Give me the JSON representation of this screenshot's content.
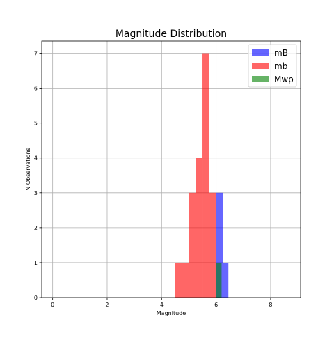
{
  "chart_data": {
    "type": "bar",
    "title": "Magnitude Distribution",
    "xlabel": "Magnitude",
    "ylabel": "N Observations",
    "xlim": [
      -0.4,
      9.1
    ],
    "ylim": [
      0,
      7.35
    ],
    "xticks": [
      0,
      2,
      4,
      6,
      8
    ],
    "yticks": [
      0,
      1,
      2,
      3,
      4,
      5,
      6,
      7
    ],
    "grid": true,
    "legend_position": "top-right",
    "series": [
      {
        "name": "mB",
        "color": "#0000ff",
        "opacity": 0.6,
        "bins": [
          {
            "x0": 6.0,
            "x1": 6.25,
            "count": 3
          },
          {
            "x0": 6.25,
            "x1": 6.45,
            "count": 1
          }
        ]
      },
      {
        "name": "mb",
        "color": "#ff0000",
        "opacity": 0.6,
        "bins": [
          {
            "x0": 4.5,
            "x1": 5.0,
            "count": 1
          },
          {
            "x0": 5.0,
            "x1": 5.25,
            "count": 3
          },
          {
            "x0": 5.25,
            "x1": 5.5,
            "count": 4
          },
          {
            "x0": 5.5,
            "x1": 5.75,
            "count": 7
          },
          {
            "x0": 5.75,
            "x1": 6.0,
            "count": 3
          }
        ]
      },
      {
        "name": "Mwp",
        "color": "#008000",
        "opacity": 0.6,
        "bins": [
          {
            "x0": 6.0,
            "x1": 6.2,
            "count": 1
          }
        ]
      }
    ]
  }
}
